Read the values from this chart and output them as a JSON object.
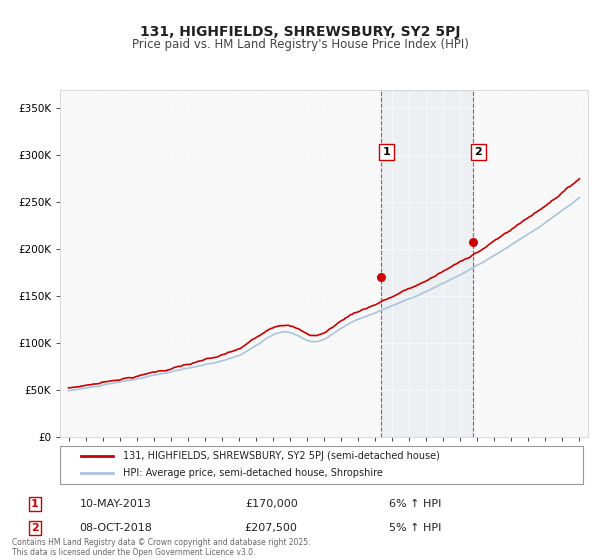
{
  "title": "131, HIGHFIELDS, SHREWSBURY, SY2 5PJ",
  "subtitle": "Price paid vs. HM Land Registry's House Price Index (HPI)",
  "legend_line1": "131, HIGHFIELDS, SHREWSBURY, SY2 5PJ (semi-detached house)",
  "legend_line2": "HPI: Average price, semi-detached house, Shropshire",
  "sale1_date": "10-MAY-2013",
  "sale1_price": "£170,000",
  "sale1_hpi": "6% ↑ HPI",
  "sale1_year": 2013.36,
  "sale1_value": 170000,
  "sale2_date": "08-OCT-2018",
  "sale2_price": "£207,500",
  "sale2_hpi": "5% ↑ HPI",
  "sale2_year": 2018.77,
  "sale2_value": 207500,
  "footer": "Contains HM Land Registry data © Crown copyright and database right 2025.\nThis data is licensed under the Open Government Licence v3.0.",
  "hpi_color": "#aac4dd",
  "price_color": "#cc0000",
  "dot_color": "#cc0000",
  "bg_color": "#f0f4f8",
  "xlim": [
    1994.5,
    2025.5
  ],
  "ylim": [
    0,
    370000
  ],
  "yticks": [
    0,
    50000,
    100000,
    150000,
    200000,
    250000,
    300000,
    350000
  ]
}
